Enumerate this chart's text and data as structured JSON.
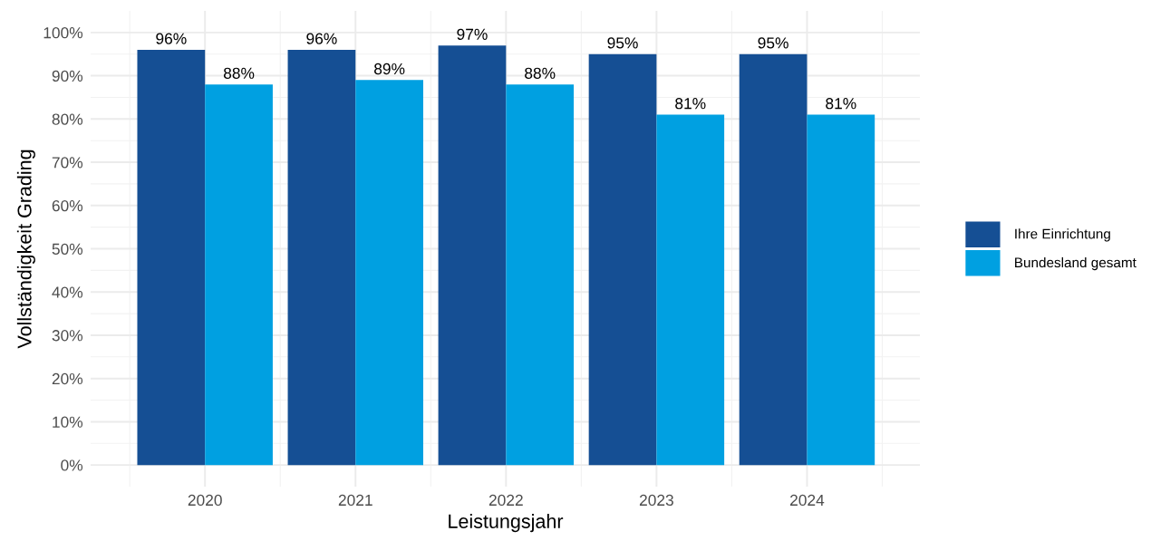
{
  "chart_data": {
    "type": "bar",
    "categories": [
      "2020",
      "2021",
      "2022",
      "2023",
      "2024"
    ],
    "xlabel": "Leistungsjahr",
    "ylabel": "Vollständigkeit Grading",
    "series": [
      {
        "name": "Ihre Einrichtung",
        "color": "#154f94",
        "values": [
          96,
          96,
          97,
          95,
          95
        ],
        "value_labels": [
          "96%",
          "96%",
          "97%",
          "95%",
          "95%"
        ]
      },
      {
        "name": "Bundesland gesamt",
        "color": "#00a0e1",
        "values": [
          88,
          89,
          88,
          81,
          81
        ],
        "value_labels": [
          "88%",
          "89%",
          "88%",
          "81%",
          "81%"
        ]
      }
    ],
    "ylim": [
      -5,
      105
    ],
    "yticks": [
      {
        "value": 0,
        "label": "0%"
      },
      {
        "value": 10,
        "label": "10%"
      },
      {
        "value": 20,
        "label": "20%"
      },
      {
        "value": 30,
        "label": "30%"
      },
      {
        "value": 40,
        "label": "40%"
      },
      {
        "value": 50,
        "label": "50%"
      },
      {
        "value": 60,
        "label": "60%"
      },
      {
        "value": 70,
        "label": "70%"
      },
      {
        "value": 80,
        "label": "80%"
      },
      {
        "value": 90,
        "label": "90%"
      },
      {
        "value": 100,
        "label": "100%"
      }
    ],
    "grid": true,
    "legend": "right"
  }
}
